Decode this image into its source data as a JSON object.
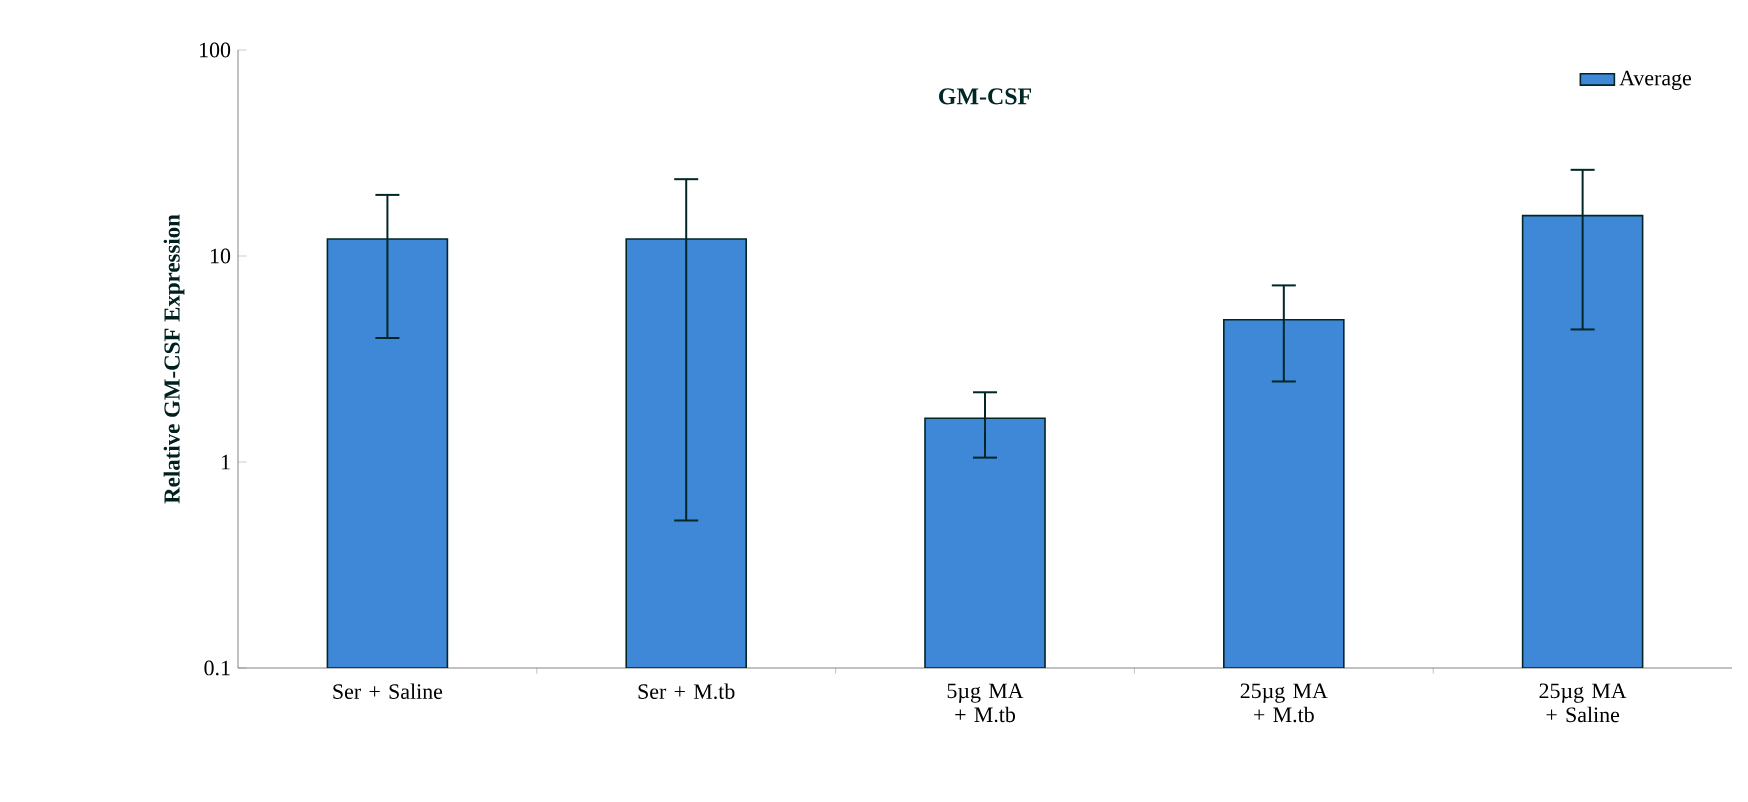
{
  "chart_data": {
    "type": "bar",
    "title": "GM-CSF",
    "ylabel": "Relative GM-CSF Expression",
    "categories": [
      "Ser + Saline",
      "Ser + M.tb",
      "5µg MA + M.tb",
      "25µg MA + M.tb",
      "25µg MA + Saline"
    ],
    "series": [
      {
        "name": "Average",
        "color": "#3f88d8",
        "values": [
          12.1,
          12.1,
          1.63,
          4.9,
          15.7
        ],
        "errors": [
          [
            4.0,
            19.8
          ],
          [
            0.52,
            23.6
          ],
          [
            1.05,
            2.18
          ],
          [
            2.46,
            7.2
          ],
          [
            4.4,
            26.2
          ]
        ]
      }
    ],
    "log": true,
    "ylim": [
      0.1,
      100
    ],
    "yticks": [
      0.1,
      1,
      10,
      100
    ],
    "legend": "top right",
    "grid": false
  }
}
